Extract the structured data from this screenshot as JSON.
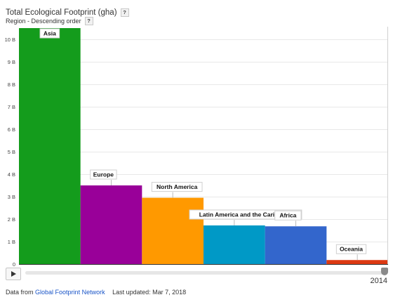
{
  "header": {
    "title": "Total Ecological Footprint (gha)",
    "subtitle": "Region - Descending order",
    "help_glyph": "?"
  },
  "chart_data": {
    "type": "bar",
    "title": "Total Ecological Footprint (gha)",
    "subtitle": "Region - Descending order",
    "categories": [
      "Asia",
      "Europe",
      "North America",
      "Latin America and the Caribbean",
      "Africa",
      "Oceania"
    ],
    "values": [
      10.5,
      3.5,
      2.95,
      1.72,
      1.68,
      0.18
    ],
    "unit": "B",
    "colors": [
      "#149c1c",
      "#990099",
      "#ff9900",
      "#0099c6",
      "#3366cc",
      "#dc3912"
    ],
    "yticks": [
      "0",
      "1 B",
      "2 B",
      "3 B",
      "4 B",
      "5 B",
      "6 B",
      "7 B",
      "8 B",
      "9 B",
      "10 B"
    ],
    "ylim": [
      0,
      10.6
    ],
    "grid": true,
    "data_labels": true
  },
  "timeline": {
    "year": "2014",
    "play_label": "play"
  },
  "footer": {
    "source_prefix": "Data from",
    "source_link": "Global Footprint Network",
    "last_updated": "Last updated: Mar 7, 2018"
  }
}
